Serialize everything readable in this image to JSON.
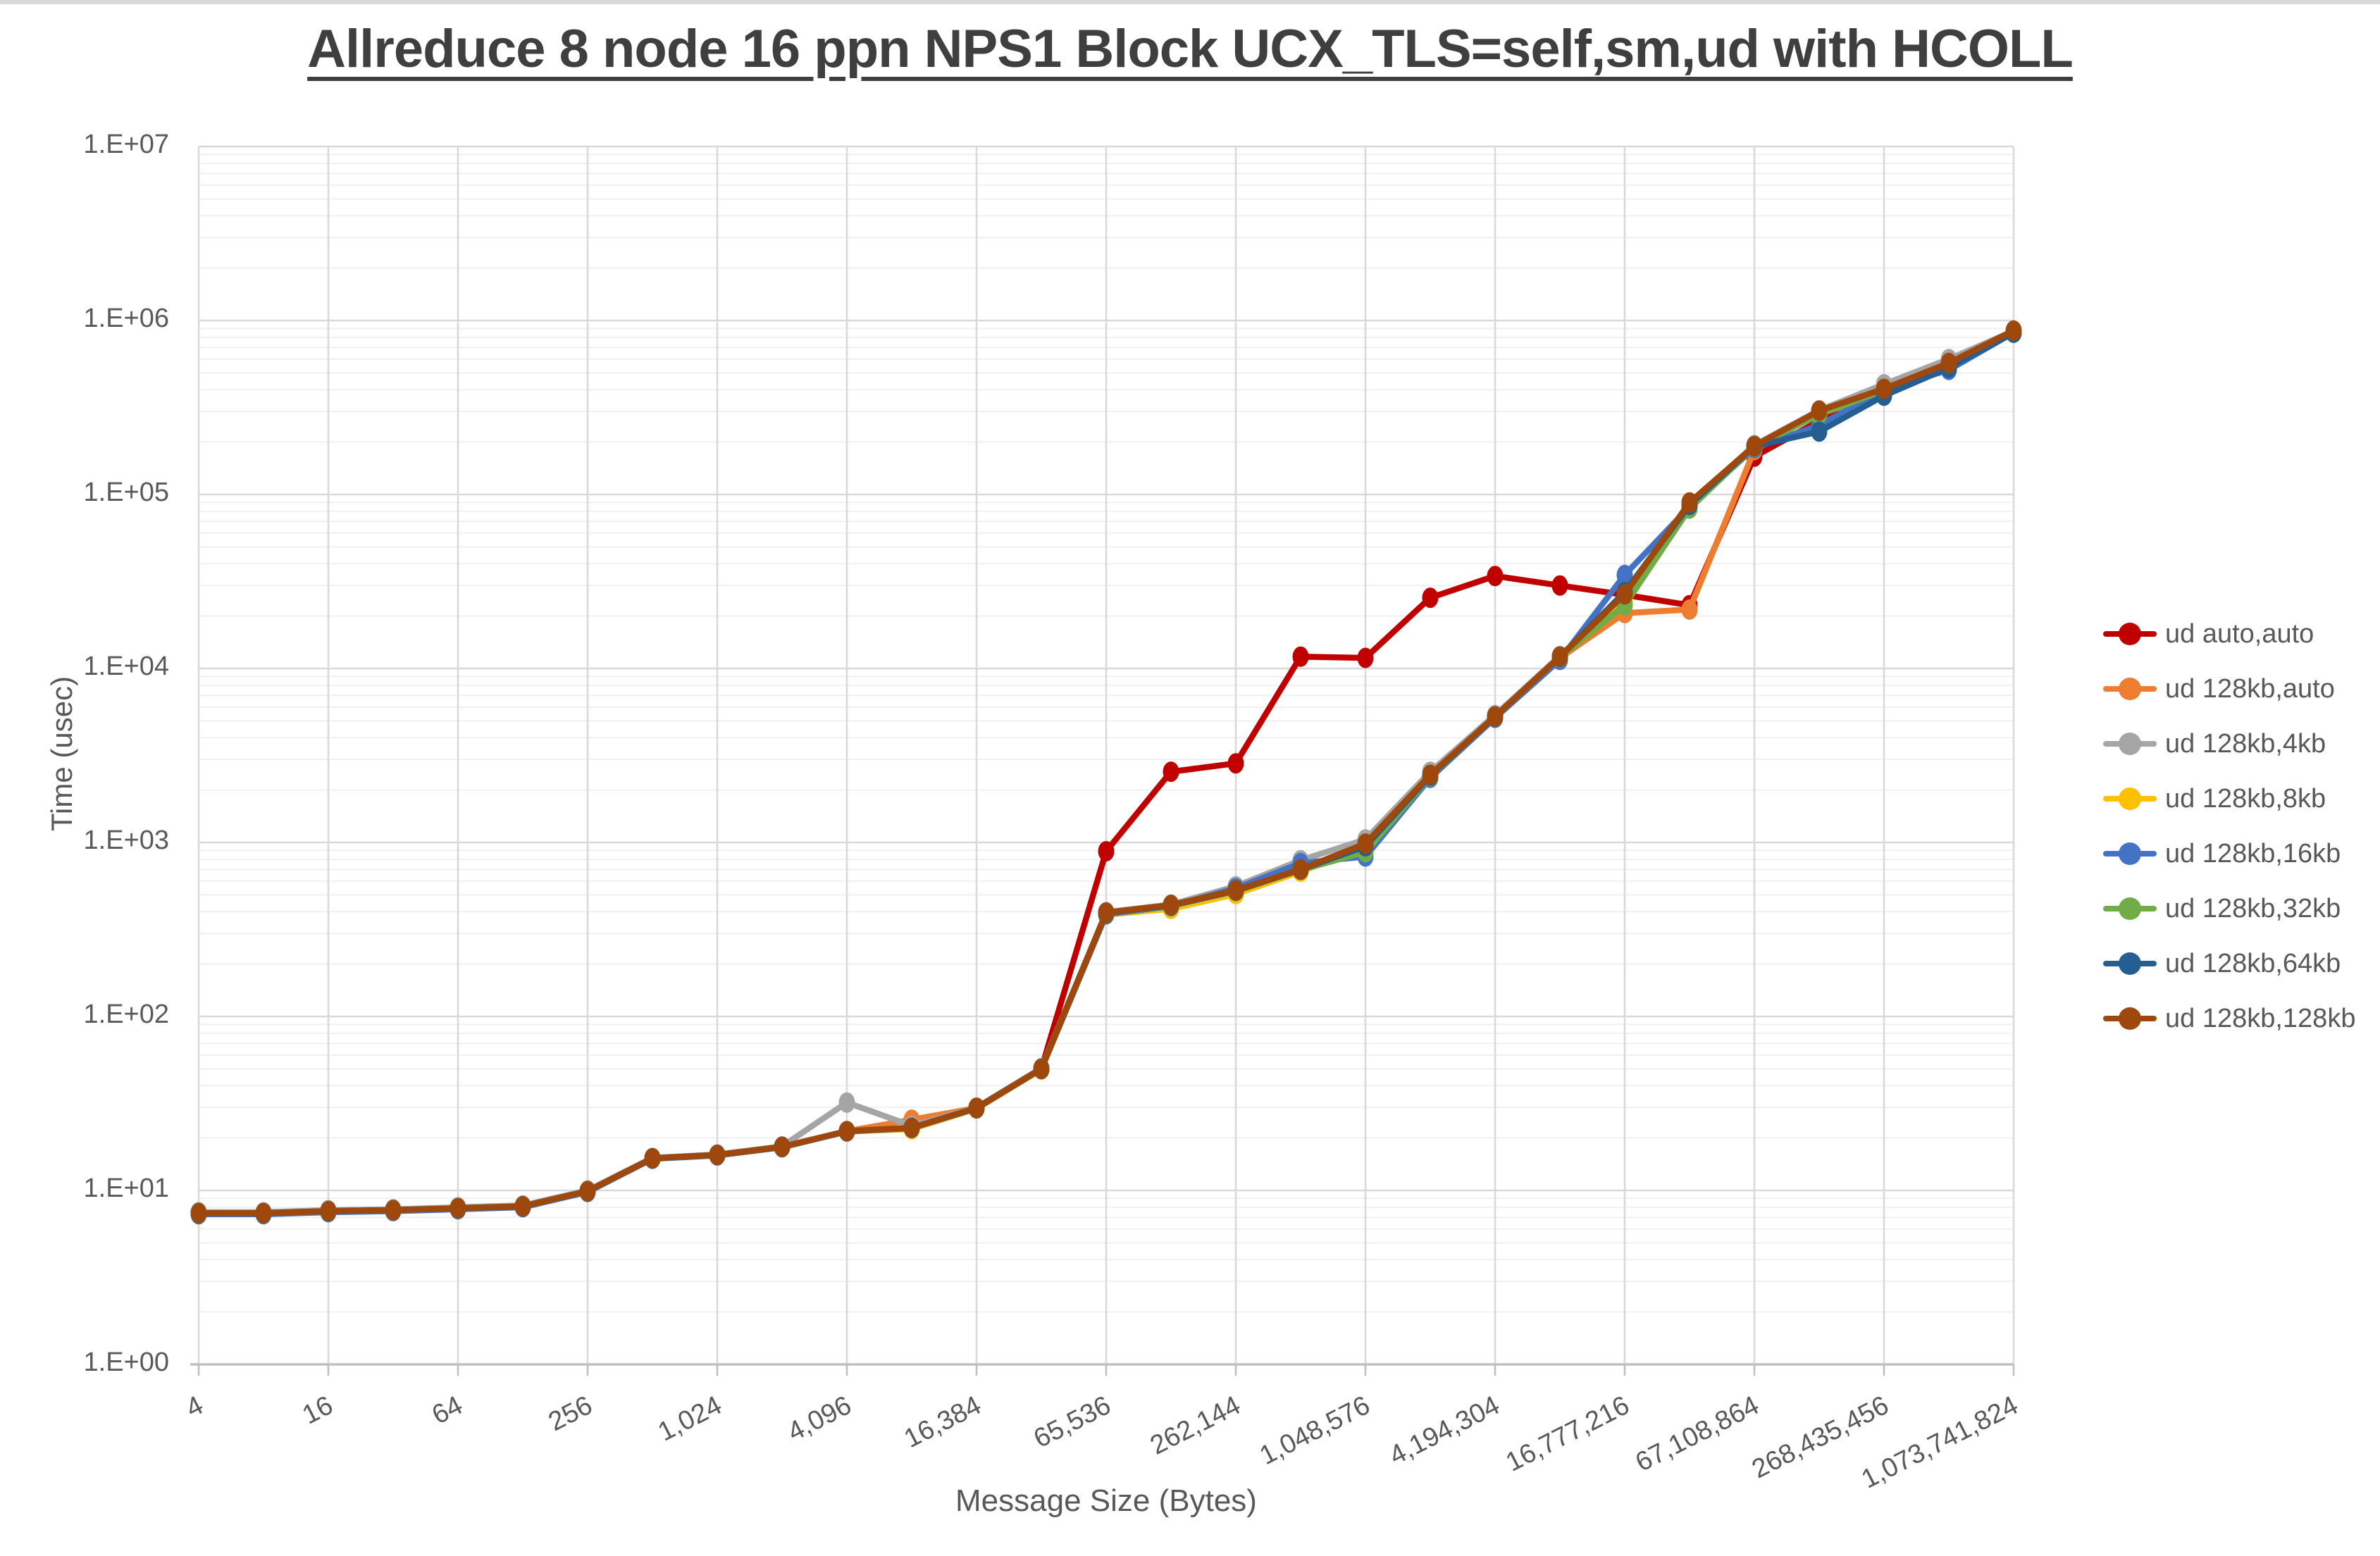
{
  "window": {
    "top_strip_color": "#d9d9d9"
  },
  "chart": {
    "title": "Allreduce 8 node 16 ppn NPS1 Block UCX_TLS=self,sm,ud with HCOLL",
    "x_axis_title": "Message Size (Bytes)",
    "y_axis_title": "Time (usec)",
    "y_tick_labels": [
      "1.E+00",
      "1.E+01",
      "1.E+02",
      "1.E+03",
      "1.E+04",
      "1.E+05",
      "1.E+06",
      "1.E+07"
    ],
    "x_tick_labels": [
      "4",
      "16",
      "64",
      "256",
      "1,024",
      "4,096",
      "16,384",
      "65,536",
      "262,144",
      "1,048,576",
      "4,194,304",
      "16,777,216",
      "67,108,864",
      "268,435,456",
      "1,073,741,824"
    ]
  },
  "legend": {
    "items": [
      {
        "label": "ud auto,auto",
        "color": "#C00000"
      },
      {
        "label": "ud 128kb,auto",
        "color": "#ED7D31"
      },
      {
        "label": "ud 128kb,4kb",
        "color": "#A5A5A5"
      },
      {
        "label": "ud 128kb,8kb",
        "color": "#FFC000"
      },
      {
        "label": "ud 128kb,16kb",
        "color": "#4472C4"
      },
      {
        "label": "ud 128kb,32kb",
        "color": "#70AD47"
      },
      {
        "label": "ud 128kb,64kb",
        "color": "#255E91"
      },
      {
        "label": "ud 128kb,128kb",
        "color": "#9E480E"
      }
    ]
  },
  "chart_data": {
    "type": "line",
    "title": "Allreduce 8 node 16 ppn NPS1 Block UCX_TLS=self,sm,ud with HCOLL",
    "xlabel": "Message Size (Bytes)",
    "ylabel": "Time (usec)",
    "x_scale": "log",
    "y_scale": "log",
    "xlim": [
      4,
      1073741824
    ],
    "ylim": [
      1,
      10000000
    ],
    "grid": "horizontal major+minor (log), vertical major at powers of 4",
    "legend_position": "right",
    "x": [
      4,
      8,
      16,
      32,
      64,
      128,
      256,
      512,
      1024,
      2048,
      4096,
      8192,
      16384,
      32768,
      65536,
      131072,
      262144,
      524288,
      1048576,
      2097152,
      4194304,
      8388608,
      16777216,
      33554432,
      67108864,
      134217728,
      268435456,
      536870912,
      1073741824
    ],
    "x_major_ticks": [
      4,
      16,
      64,
      256,
      1024,
      4096,
      16384,
      65536,
      262144,
      1048576,
      4194304,
      16777216,
      67108864,
      268435456,
      1073741824
    ],
    "series": [
      {
        "name": "ud auto,auto",
        "color": "#C00000",
        "values": [
          7.4,
          7.4,
          7.6,
          7.7,
          7.9,
          8.1,
          9.9,
          15.3,
          16,
          17.8,
          21.9,
          22.9,
          29.8,
          50,
          890,
          2550,
          2850,
          11700,
          11500,
          25500,
          34000,
          30000,
          26500,
          23100,
          165000,
          265000,
          390000,
          545000,
          855000
        ]
      },
      {
        "name": "ud 128kb,auto",
        "color": "#ED7D31",
        "values": [
          7.4,
          7.4,
          7.6,
          7.7,
          7.9,
          8.1,
          9.9,
          15.3,
          16,
          17.8,
          21.9,
          25.5,
          29.8,
          50,
          390,
          425,
          510,
          690,
          960,
          2400,
          5250,
          11500,
          20800,
          21800,
          180000,
          295000,
          395000,
          550000,
          858000
        ]
      },
      {
        "name": "ud 128kb,4kb",
        "color": "#A5A5A5",
        "values": [
          7.5,
          7.5,
          7.7,
          7.8,
          8,
          8.2,
          10,
          15.4,
          16.1,
          17.9,
          32,
          23.5,
          30,
          50.5,
          398,
          440,
          560,
          790,
          1040,
          2550,
          5400,
          11800,
          26000,
          88000,
          192000,
          305000,
          430000,
          600000,
          870000
        ]
      },
      {
        "name": "ud 128kb,8kb",
        "color": "#FFC000",
        "values": [
          7.4,
          7.4,
          7.6,
          7.7,
          7.9,
          8.1,
          9.9,
          15.2,
          15.9,
          17.7,
          21.8,
          22.5,
          29.5,
          49.5,
          385,
          415,
          505,
          680,
          940,
          2400,
          5250,
          11600,
          24500,
          86000,
          186000,
          290000,
          385000,
          548000,
          850000
        ]
      },
      {
        "name": "ud 128kb,16kb",
        "color": "#4472C4",
        "values": [
          7.3,
          7.3,
          7.5,
          7.6,
          7.8,
          8,
          9.8,
          15.2,
          15.9,
          17.7,
          21.8,
          22.8,
          29.6,
          49.8,
          386,
          430,
          545,
          760,
          830,
          2350,
          5200,
          11200,
          34500,
          85000,
          185000,
          250000,
          400000,
          520000,
          852000
        ]
      },
      {
        "name": "ud 128kb,32kb",
        "color": "#70AD47",
        "values": [
          7.4,
          7.4,
          7.6,
          7.7,
          7.9,
          8.1,
          9.9,
          15.3,
          16,
          17.8,
          21.9,
          22.9,
          29.7,
          50,
          392,
          432,
          525,
          695,
          880,
          2400,
          5300,
          11600,
          23100,
          83000,
          188000,
          288000,
          398000,
          548000,
          856000
        ]
      },
      {
        "name": "ud 128kb,64kb",
        "color": "#255E91",
        "values": [
          7.4,
          7.4,
          7.6,
          7.7,
          7.9,
          8.1,
          9.9,
          15.3,
          16,
          17.8,
          21.9,
          22.9,
          29.8,
          50,
          393,
          434,
          528,
          698,
          950,
          2420,
          5300,
          11650,
          27500,
          87000,
          189000,
          230000,
          370000,
          535000,
          850000
        ]
      },
      {
        "name": "ud 128kb,128kb",
        "color": "#9E480E",
        "values": [
          7.4,
          7.4,
          7.6,
          7.7,
          7.9,
          8.1,
          9.9,
          15.3,
          16,
          17.8,
          21.9,
          22.9,
          29.8,
          50,
          395,
          437,
          530,
          700,
          985,
          2450,
          5300,
          11700,
          26700,
          90000,
          190000,
          303000,
          405000,
          570000,
          875000
        ]
      }
    ]
  }
}
